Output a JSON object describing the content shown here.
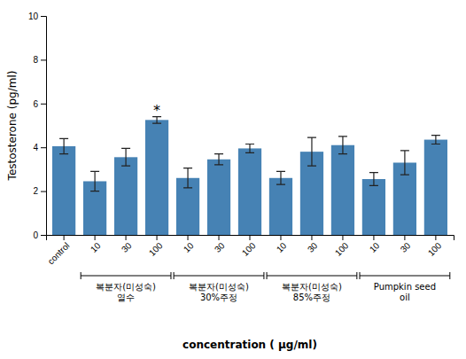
{
  "chart_data": {
    "type": "bar",
    "categories": [
      "control",
      "10",
      "30",
      "100",
      "10",
      "30",
      "100",
      "10",
      "30",
      "100",
      "10",
      "30",
      "100"
    ],
    "values": [
      4.05,
      2.45,
      3.55,
      5.25,
      2.6,
      3.45,
      3.95,
      2.6,
      3.8,
      4.1,
      2.55,
      3.3,
      4.35
    ],
    "errors": [
      0.35,
      0.45,
      0.4,
      0.15,
      0.45,
      0.25,
      0.2,
      0.3,
      0.65,
      0.4,
      0.3,
      0.55,
      0.2
    ],
    "y_label": "Testosterone (pg/ml)",
    "x_label": "concentration ( μg/ml)",
    "ylim": [
      0,
      10
    ],
    "yticks": [
      0,
      2,
      4,
      6,
      8,
      10
    ],
    "grid": false,
    "groups": [
      {
        "label": "복분자(미성숙)\n열수",
        "span": [
          1,
          3
        ]
      },
      {
        "label": "복분자(미성숙)\n30%주정",
        "span": [
          4,
          6
        ]
      },
      {
        "label": "복분자(미성숙)\n85%주정",
        "span": [
          7,
          9
        ]
      },
      {
        "label": "Pumpkin seed\noil",
        "span": [
          10,
          12
        ]
      }
    ],
    "annotations": [
      {
        "text": "*",
        "index": 3
      }
    ]
  }
}
